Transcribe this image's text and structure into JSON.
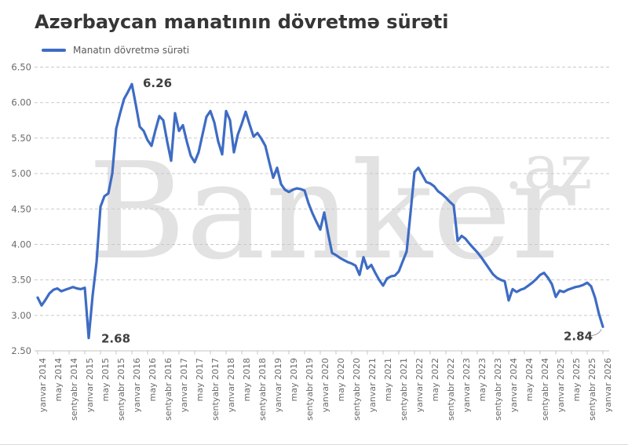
{
  "chart_data": {
    "type": "line",
    "title": "Azərbaycan manatının dövretmə sürəti",
    "legend_label": "Manatın dövretmə sürəti",
    "legend_position": "top-left",
    "grid": "horizontal-dashed",
    "ylim": [
      2.5,
      6.5
    ],
    "y_ticks": [
      "2.50",
      "3.00",
      "3.50",
      "4.00",
      "4.50",
      "5.00",
      "5.50",
      "6.00",
      "6.50"
    ],
    "x_tick_labels": [
      "yanvar 2014",
      "may 2014",
      "sentyabr 2014",
      "yanvar 2015",
      "may 2015",
      "sentyabr 2015",
      "yanvar 2016",
      "may 2016",
      "sentyabr 2016",
      "yanvar 2017",
      "may 2017",
      "sentyabr 2017",
      "yanvar 2018",
      "may 2018",
      "sentyabr 2018",
      "yanvar 2019",
      "may 2019",
      "sentyabr 2019",
      "yanvar 2020",
      "may 2020",
      "sentyabr 2020",
      "yanvar 2021",
      "may 2021",
      "sentyabr 2021",
      "yanvar 2022",
      "may 2022",
      "sentyabr 2022",
      "yanvar 2023",
      "may 2023",
      "sentyabr 2023",
      "yanvar 2024",
      "may 2024",
      "sentyabr 2024",
      "yanvar 2025",
      "may 2025",
      "sentyabr 2025",
      "yanvar 2026"
    ],
    "x_tick_every_months": 4,
    "x_range": [
      "yanvar 2014",
      "yanvar 2026"
    ],
    "x_frequency": "monthly",
    "series": [
      {
        "name": "Manatın dövretmə sürəti",
        "values": [
          3.25,
          3.14,
          3.22,
          3.31,
          3.36,
          3.38,
          3.34,
          3.36,
          3.38,
          3.4,
          3.38,
          3.37,
          3.39,
          2.68,
          3.28,
          3.75,
          4.53,
          4.68,
          4.72,
          5.0,
          5.63,
          5.85,
          6.05,
          6.15,
          6.26,
          5.97,
          5.66,
          5.6,
          5.47,
          5.39,
          5.61,
          5.81,
          5.75,
          5.45,
          5.18,
          5.85,
          5.6,
          5.68,
          5.45,
          5.25,
          5.16,
          5.3,
          5.55,
          5.8,
          5.88,
          5.72,
          5.45,
          5.27,
          5.88,
          5.75,
          5.3,
          5.55,
          5.7,
          5.87,
          5.69,
          5.52,
          5.57,
          5.49,
          5.39,
          5.16,
          4.94,
          5.08,
          4.85,
          4.77,
          4.74,
          4.77,
          4.79,
          4.78,
          4.76,
          4.58,
          4.44,
          4.32,
          4.21,
          4.45,
          4.15,
          3.88,
          3.85,
          3.81,
          3.78,
          3.75,
          3.73,
          3.7,
          3.57,
          3.82,
          3.66,
          3.71,
          3.6,
          3.5,
          3.42,
          3.52,
          3.55,
          3.56,
          3.62,
          3.76,
          3.9,
          4.45,
          5.02,
          5.08,
          4.98,
          4.88,
          4.86,
          4.82,
          4.75,
          4.71,
          4.66,
          4.6,
          4.55,
          4.05,
          4.12,
          4.08,
          4.01,
          3.95,
          3.89,
          3.82,
          3.74,
          3.66,
          3.58,
          3.53,
          3.5,
          3.48,
          3.21,
          3.37,
          3.33,
          3.36,
          3.38,
          3.42,
          3.46,
          3.51,
          3.57,
          3.6,
          3.53,
          3.44,
          3.26,
          3.35,
          3.33,
          3.36,
          3.38,
          3.4,
          3.41,
          3.43,
          3.46,
          3.41,
          3.25,
          3.02,
          2.84
        ]
      }
    ],
    "annotations": [
      {
        "text": "6.26",
        "month_index": 24,
        "value": 6.26
      },
      {
        "text": "2.68",
        "month_index": 13,
        "value": 2.68
      },
      {
        "text": "2.84",
        "month_index": 144,
        "value": 2.84
      }
    ],
    "colors": {
      "line": "#3e6cc4",
      "grid": "#c9c9c9",
      "axis_line": "#c4c4c4",
      "axis_text": "#6a6a6a",
      "title_text": "#363636",
      "legend_text": "#595959",
      "annotation_text": "#404040",
      "watermark": "#e2e2e2"
    }
  },
  "watermark": {
    "text": "Banker",
    "suffix": ".az"
  }
}
